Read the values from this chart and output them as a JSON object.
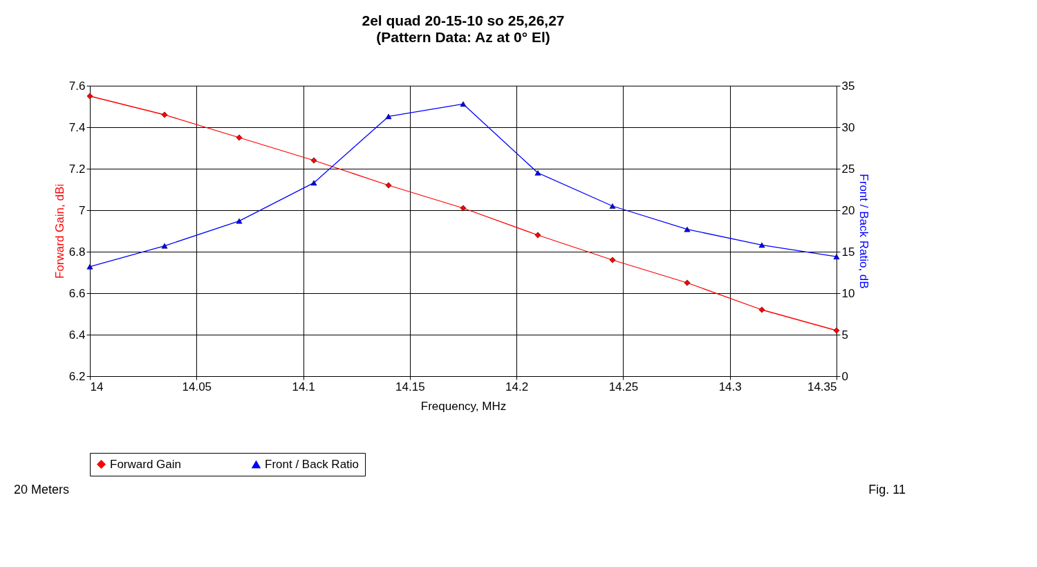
{
  "chart_data": {
    "type": "line",
    "title": "2el quad 20-15-10 so 25,26,27",
    "subtitle": "(Pattern Data: Az at 0° El)",
    "xlabel": "Frequency, MHz",
    "ylabel": "Forward Gain,  dBi",
    "y2label": "Front / Back Ratio,  dB",
    "x": [
      14,
      14.035,
      14.07,
      14.105,
      14.14,
      14.175,
      14.21,
      14.245,
      14.28,
      14.315,
      14.35
    ],
    "series": [
      {
        "name": "Forward Gain",
        "color": "#ff0000",
        "marker": "diamond",
        "values": [
          7.55,
          7.46,
          7.35,
          7.24,
          7.12,
          7.01,
          6.88,
          6.76,
          6.65,
          6.52,
          6.42
        ]
      },
      {
        "name": "Front / Back Ratio",
        "color": "#0000ff",
        "marker": "triangle",
        "axis": "y2",
        "values": [
          13.2,
          15.7,
          18.7,
          23.3,
          31.3,
          32.8,
          24.5,
          20.5,
          17.7,
          15.8,
          14.4
        ]
      }
    ],
    "xlim": [
      14,
      14.35
    ],
    "xticks": [
      14,
      14.05,
      14.1,
      14.15,
      14.2,
      14.25,
      14.3,
      14.35
    ],
    "ylim": [
      6.2,
      7.6
    ],
    "yticks": [
      6.2,
      6.4,
      6.6,
      6.8,
      7,
      7.2,
      7.4,
      7.6
    ],
    "y2lim": [
      0,
      35
    ],
    "y2ticks": [
      0,
      5,
      10,
      15,
      20,
      25,
      30,
      35
    ],
    "grid": true,
    "legend": "bottom",
    "line_style": "solid",
    "annotations": [
      "20 Meters",
      "Fig. 11"
    ]
  }
}
